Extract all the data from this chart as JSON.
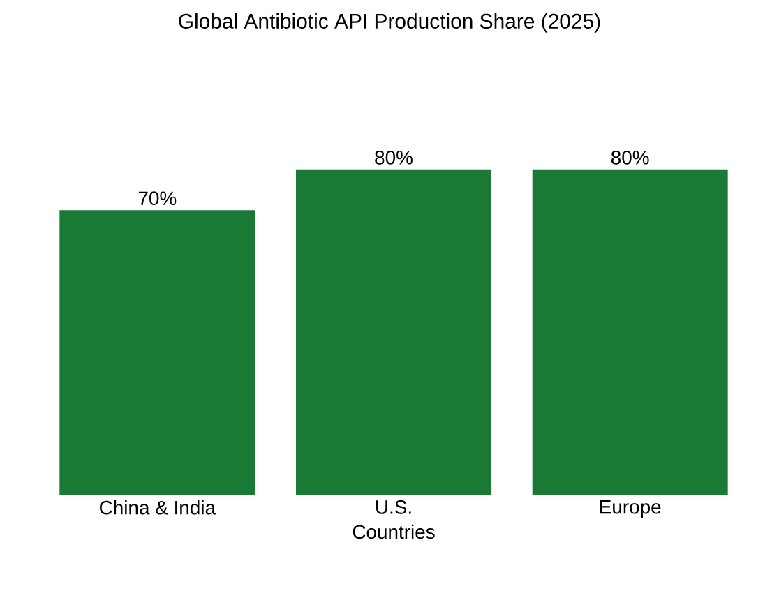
{
  "chart_data": {
    "type": "bar",
    "title": "Global Antibiotic API Production Share (2025)",
    "xlabel": "Countries",
    "categories": [
      "China & India",
      "U.S.",
      "Europe"
    ],
    "values": [
      70,
      80,
      80
    ],
    "value_labels": [
      "70%",
      "80%",
      "80%"
    ],
    "color": "#1a7a35"
  }
}
